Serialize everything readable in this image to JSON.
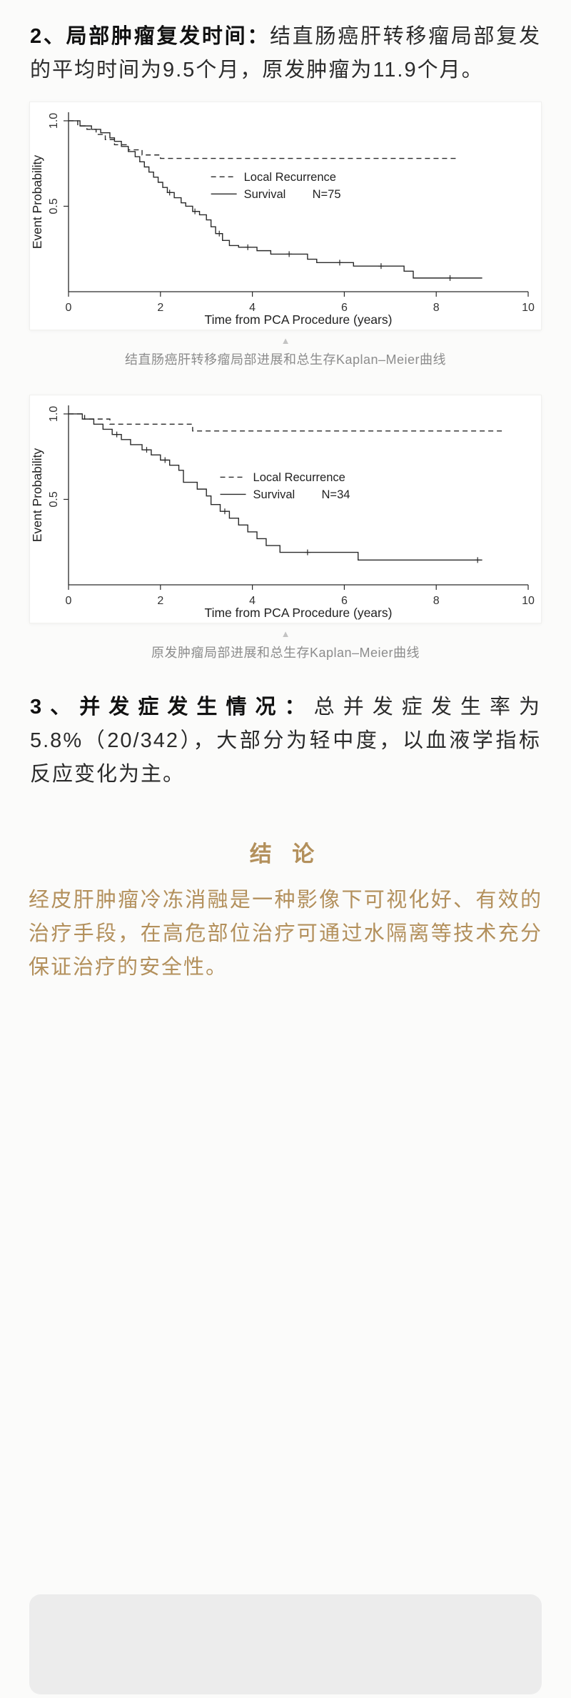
{
  "page": {
    "bg_color": "#fbfbfa",
    "accent_gold": "#b3905c",
    "text_color": "#2b2b2b",
    "caption_color": "#8c8c8c"
  },
  "sections": {
    "recurrence_paragraph": {
      "lead": "2、局部肿瘤复发时间：",
      "body": "结直肠癌肝转移瘤局部复发的平均时间为9.5个月，原发肿瘤为11.9个月。"
    },
    "complications_paragraph": {
      "lead": "3、并发症发生情况：",
      "body": "总并发症发生率为5.8%（20/342），大部分为轻中度，以血液学指标反应变化为主。"
    },
    "conclusion": {
      "heading": "结 论",
      "text": "经皮肝肿瘤冷冻消融是一种影像下可视化好、有效的治疗手段，在高危部位治疗可通过水隔离等技术充分保证治疗的安全性。"
    }
  },
  "figures": {
    "arrow_icon": "▲",
    "caption_1": "结直肠癌肝转移瘤局部进展和总生存Kaplan–Meier曲线",
    "caption_2": "原发肿瘤局部进展和总生存Kaplan–Meier曲线"
  },
  "chart_data": [
    {
      "type": "line",
      "subtype": "kaplan-meier-step",
      "xlabel": "Time from PCA Procedure (years)",
      "ylabel": "Event Probability",
      "xlim": [
        0,
        10
      ],
      "ylim": [
        0,
        1.05
      ],
      "xticks": [
        0,
        2,
        4,
        6,
        8,
        10
      ],
      "yticks": [
        0.5,
        1.0
      ],
      "legend_pos": [
        0.31,
        0.36
      ],
      "legend": [
        {
          "label": "Local Recurrence",
          "style": "dashed"
        },
        {
          "label": "Survival",
          "n_label": "N=75",
          "style": "solid"
        }
      ],
      "series": [
        {
          "name": "Local Recurrence",
          "style": "dashed",
          "points": [
            [
              0,
              1.0
            ],
            [
              0.2,
              0.97
            ],
            [
              0.4,
              0.95
            ],
            [
              0.6,
              0.92
            ],
            [
              0.8,
              0.89
            ],
            [
              1.0,
              0.86
            ],
            [
              1.3,
              0.83
            ],
            [
              1.6,
              0.8
            ],
            [
              2.0,
              0.78
            ],
            [
              8.5,
              0.78
            ]
          ],
          "censors": []
        },
        {
          "name": "Survival",
          "n": 75,
          "style": "solid",
          "points": [
            [
              0,
              1.0
            ],
            [
              0.25,
              0.97
            ],
            [
              0.5,
              0.95
            ],
            [
              0.7,
              0.93
            ],
            [
              0.9,
              0.9
            ],
            [
              1.0,
              0.88
            ],
            [
              1.15,
              0.85
            ],
            [
              1.3,
              0.82
            ],
            [
              1.45,
              0.79
            ],
            [
              1.55,
              0.76
            ],
            [
              1.65,
              0.73
            ],
            [
              1.75,
              0.7
            ],
            [
              1.85,
              0.67
            ],
            [
              1.95,
              0.64
            ],
            [
              2.05,
              0.61
            ],
            [
              2.15,
              0.58
            ],
            [
              2.3,
              0.55
            ],
            [
              2.45,
              0.52
            ],
            [
              2.55,
              0.5
            ],
            [
              2.7,
              0.47
            ],
            [
              2.85,
              0.45
            ],
            [
              3.0,
              0.42
            ],
            [
              3.1,
              0.38
            ],
            [
              3.2,
              0.34
            ],
            [
              3.35,
              0.3
            ],
            [
              3.5,
              0.27
            ],
            [
              3.7,
              0.26
            ],
            [
              4.1,
              0.24
            ],
            [
              4.4,
              0.22
            ],
            [
              5.2,
              0.19
            ],
            [
              5.4,
              0.17
            ],
            [
              6.2,
              0.15
            ],
            [
              7.3,
              0.12
            ],
            [
              7.5,
              0.08
            ],
            [
              9.0,
              0.08
            ]
          ],
          "censors": [
            [
              2.2,
              0.58
            ],
            [
              2.75,
              0.47
            ],
            [
              3.28,
              0.34
            ],
            [
              3.9,
              0.26
            ],
            [
              4.8,
              0.22
            ],
            [
              5.9,
              0.17
            ],
            [
              6.8,
              0.15
            ],
            [
              8.3,
              0.08
            ]
          ]
        }
      ]
    },
    {
      "type": "line",
      "subtype": "kaplan-meier-step",
      "xlabel": "Time from PCA Procedure (years)",
      "ylabel": "Event Probability",
      "xlim": [
        0,
        10
      ],
      "ylim": [
        0,
        1.05
      ],
      "xticks": [
        0,
        2,
        4,
        6,
        8,
        10
      ],
      "yticks": [
        0.5,
        1.0
      ],
      "legend_pos": [
        0.33,
        0.4
      ],
      "legend": [
        {
          "label": "Local Recurrence",
          "style": "dashed"
        },
        {
          "label": "Survival",
          "n_label": "N=34",
          "style": "solid"
        }
      ],
      "series": [
        {
          "name": "Local Recurrence",
          "style": "dashed",
          "points": [
            [
              0,
              1.0
            ],
            [
              0.35,
              0.97
            ],
            [
              0.9,
              0.94
            ],
            [
              2.7,
              0.9
            ],
            [
              9.5,
              0.9
            ]
          ],
          "censors": []
        },
        {
          "name": "Survival",
          "n": 34,
          "style": "solid",
          "points": [
            [
              0,
              1.0
            ],
            [
              0.3,
              0.97
            ],
            [
              0.55,
              0.94
            ],
            [
              0.75,
              0.91
            ],
            [
              0.95,
              0.88
            ],
            [
              1.15,
              0.85
            ],
            [
              1.35,
              0.82
            ],
            [
              1.6,
              0.79
            ],
            [
              1.8,
              0.76
            ],
            [
              2.0,
              0.73
            ],
            [
              2.2,
              0.7
            ],
            [
              2.4,
              0.67
            ],
            [
              2.5,
              0.6
            ],
            [
              2.8,
              0.56
            ],
            [
              3.0,
              0.52
            ],
            [
              3.1,
              0.47
            ],
            [
              3.3,
              0.43
            ],
            [
              3.5,
              0.39
            ],
            [
              3.7,
              0.35
            ],
            [
              3.9,
              0.31
            ],
            [
              4.1,
              0.27
            ],
            [
              4.3,
              0.23
            ],
            [
              4.6,
              0.19
            ],
            [
              6.3,
              0.145
            ],
            [
              9.0,
              0.145
            ]
          ],
          "censors": [
            [
              1.05,
              0.88
            ],
            [
              1.7,
              0.79
            ],
            [
              2.1,
              0.73
            ],
            [
              3.4,
              0.43
            ],
            [
              5.2,
              0.19
            ],
            [
              8.9,
              0.145
            ]
          ]
        }
      ]
    }
  ]
}
